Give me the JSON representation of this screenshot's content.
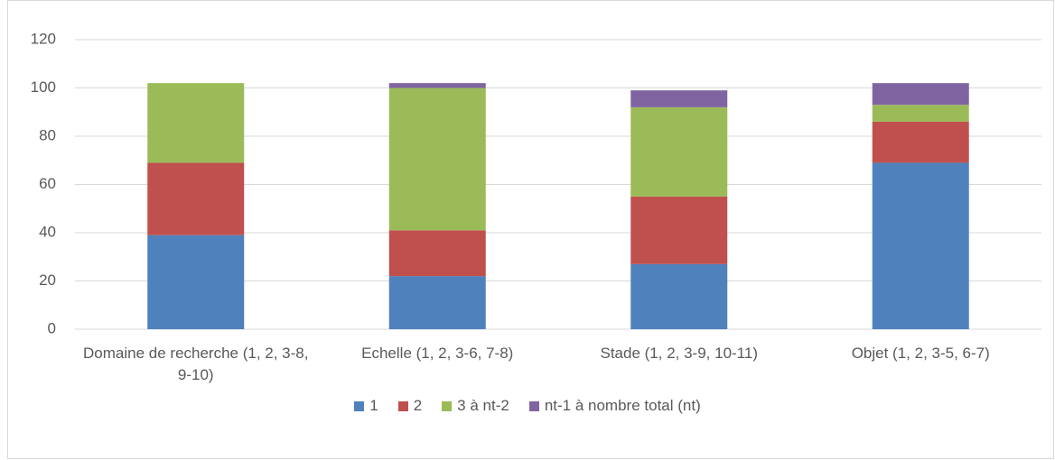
{
  "chart_data": {
    "type": "stacked_bar",
    "categories": [
      "Domaine de recherche (1, 2, 3-8, 9-10)",
      "Echelle (1, 2, 3-6, 7-8)",
      "Stade (1, 2, 3-9, 10-11)",
      "Objet (1, 2, 3-5, 6-7)"
    ],
    "series": [
      {
        "name": "1",
        "color": "#4f81bd",
        "values": [
          39,
          22,
          27,
          69
        ]
      },
      {
        "name": "2",
        "color": "#c0504d",
        "values": [
          30,
          19,
          28,
          17
        ]
      },
      {
        "name": "3 à nt-2",
        "color": "#9bbb59",
        "values": [
          33,
          59,
          37,
          7
        ]
      },
      {
        "name": "nt-1 à nombre total (nt)",
        "color": "#8064a2",
        "values": [
          0,
          2,
          7,
          9
        ]
      }
    ],
    "ylim": [
      0,
      120
    ],
    "yticks": [
      0,
      20,
      40,
      60,
      80,
      100,
      120
    ],
    "grid": true,
    "legend": "bottom"
  }
}
